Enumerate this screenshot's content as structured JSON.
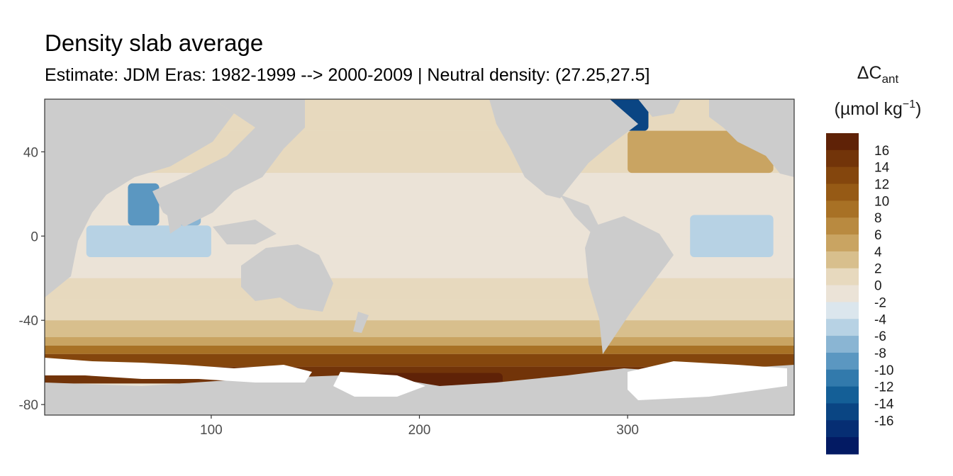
{
  "chart_data": {
    "type": "heatmap",
    "title": "Density slab average",
    "subtitle": "Estimate: JDM Eras: 1982-1999 --> 2000-2009 | Neutral density: (27.25,27.5]",
    "xlabel": "",
    "ylabel": "",
    "xlim": [
      20,
      380
    ],
    "ylim": [
      -85,
      65
    ],
    "x_ticks": [
      100,
      200,
      300
    ],
    "y_ticks": [
      40,
      0,
      -40,
      -80
    ],
    "grid": false,
    "legend_position": "right",
    "colorbar": {
      "title_main": "ΔC",
      "title_sub": "ant",
      "unit_base": "(µmol kg",
      "unit_exp": "−1",
      "unit_end": ")",
      "bins": [
        {
          "label": "",
          "color": "#5f2207"
        },
        {
          "label": "16",
          "color": "#723409"
        },
        {
          "label": "14",
          "color": "#84460d"
        },
        {
          "label": "12",
          "color": "#965a15"
        },
        {
          "label": "10",
          "color": "#a87125"
        },
        {
          "label": "8",
          "color": "#b98a40"
        },
        {
          "label": "6",
          "color": "#c9a462"
        },
        {
          "label": "4",
          "color": "#d8bf8d"
        },
        {
          "label": "2",
          "color": "#e7d9be"
        },
        {
          "label": "0",
          "color": "#ebe3d7"
        },
        {
          "label": "-2",
          "color": "#dbe6ed"
        },
        {
          "label": "-4",
          "color": "#b7d2e4"
        },
        {
          "label": "-6",
          "color": "#8ab5d3"
        },
        {
          "label": "-8",
          "color": "#5b97c1"
        },
        {
          "label": "-10",
          "color": "#327aac"
        },
        {
          "label": "-12",
          "color": "#145f97"
        },
        {
          "label": "-14",
          "color": "#0a4583"
        },
        {
          "label": "-16",
          "color": "#062e73"
        },
        {
          "label": "",
          "color": "#031a63"
        }
      ]
    },
    "colors": {
      "land": "#cccccc",
      "no_data": "#ffffff",
      "panel_border": "#333333"
    },
    "latitude_bands": [
      {
        "lat": [
          50,
          65
        ],
        "value": 1
      },
      {
        "lat": [
          30,
          50
        ],
        "value": 1
      },
      {
        "lat": [
          0,
          30
        ],
        "value": 0
      },
      {
        "lat": [
          -20,
          0
        ],
        "value": 0
      },
      {
        "lat": [
          -30,
          -20
        ],
        "value": 1
      },
      {
        "lat": [
          -40,
          -30
        ],
        "value": 2
      },
      {
        "lat": [
          -48,
          -40
        ],
        "value": 3
      },
      {
        "lat": [
          -52,
          -48
        ],
        "value": 5
      },
      {
        "lat": [
          -56,
          -52
        ],
        "value": 9
      },
      {
        "lat": [
          -62,
          -56
        ],
        "value": 13
      },
      {
        "lat": [
          -70,
          -62
        ],
        "value": 16
      }
    ],
    "regional_patches": [
      {
        "region": "Arabian Sea",
        "lon": [
          60,
          75
        ],
        "lat": [
          5,
          25
        ],
        "value": -8
      },
      {
        "region": "Bay of Bengal",
        "lon": [
          80,
          95
        ],
        "lat": [
          5,
          20
        ],
        "value": -6
      },
      {
        "region": "Indian Ocean",
        "lon": [
          40,
          100
        ],
        "lat": [
          -10,
          5
        ],
        "value": -4
      },
      {
        "region": "Tropical Atlantic",
        "lon": [
          330,
          370
        ],
        "lat": [
          -10,
          10
        ],
        "value": -4
      },
      {
        "region": "Labrador Sea",
        "lon": [
          290,
          310
        ],
        "lat": [
          50,
          65
        ],
        "value": -14
      },
      {
        "region": "North Atlantic",
        "lon": [
          300,
          370
        ],
        "lat": [
          30,
          50
        ],
        "value": 5
      },
      {
        "region": "Southern Ocean Pacific sector",
        "lon": [
          180,
          240
        ],
        "lat": [
          -75,
          -65
        ],
        "value": 17
      }
    ]
  }
}
